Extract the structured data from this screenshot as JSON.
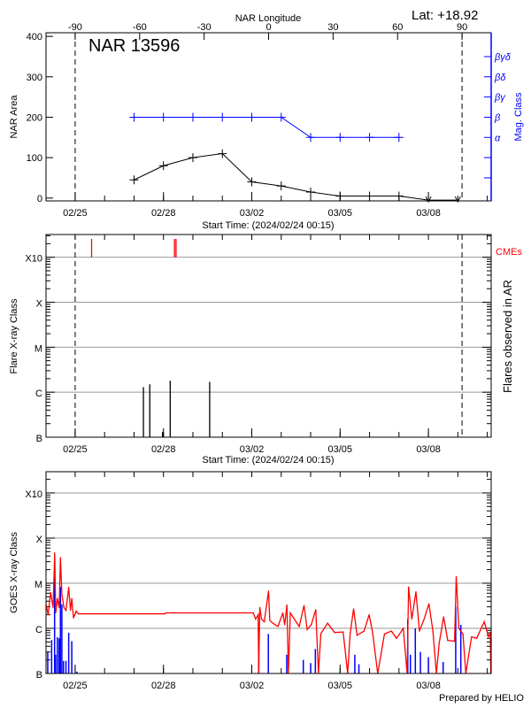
{
  "header": {
    "lat_label": "Lat: +18.92",
    "longitude_axis_label": "NAR Longitude",
    "region_title": "NAR 13596",
    "footer": "Prepared by HELIO"
  },
  "colors": {
    "area": "#000000",
    "mag_class": "#0000ff",
    "cme": "#ff0000",
    "goes_long": "#ff0000",
    "goes_short": "#0000ff",
    "grid": "#999999"
  },
  "chart_data": [
    {
      "type": "line",
      "panel": "nar",
      "xlabel": "Start Time: (2024/02/24 00:15)",
      "ylabel": "NAR Area",
      "y2label": "Mag. Class",
      "xlim": [
        "2024-02-24 00:15",
        "2024-03-10 03:10"
      ],
      "ylim": [
        -7,
        409
      ],
      "x_ticks": [
        {
          "date": "2024-02-25 00:00",
          "label": "02/25"
        },
        {
          "date": "2024-02-28 00:00",
          "label": "02/28"
        },
        {
          "date": "2024-03-02 00:00",
          "label": "03/02"
        },
        {
          "date": "2024-03-05 00:00",
          "label": "03/05"
        },
        {
          "date": "2024-03-08 00:00",
          "label": "03/08"
        }
      ],
      "y_ticks": [
        0,
        100,
        200,
        300,
        400
      ],
      "limb_dates": [
        "2024-02-25 00:00",
        "2024-03-09 03:25"
      ],
      "longitude_ticks": [
        -90,
        -60,
        -30,
        0,
        30,
        60,
        90
      ],
      "mag_class_axis": [
        {
          "level": 50,
          "label": ""
        },
        {
          "level": 100,
          "label": ""
        },
        {
          "level": 150,
          "label": "α"
        },
        {
          "level": 200,
          "label": "β"
        },
        {
          "level": 250,
          "label": "βγ"
        },
        {
          "level": 300,
          "label": "βδ"
        },
        {
          "level": 350,
          "label": "βγδ"
        }
      ],
      "series": [
        {
          "key": "area",
          "points": [
            [
              "2024-02-27 00:00",
              45
            ],
            [
              "2024-02-28 00:00",
              80
            ],
            [
              "2024-02-29 00:00",
              100
            ],
            [
              "2024-03-01 00:00",
              110
            ],
            [
              "2024-03-02 00:00",
              40
            ],
            [
              "2024-03-03 00:00",
              30
            ],
            [
              "2024-03-04 00:00",
              15
            ],
            [
              "2024-03-05 00:00",
              5
            ],
            [
              "2024-03-06 00:00",
              5
            ],
            [
              "2024-03-07 00:00",
              5
            ],
            [
              "2024-03-08 00:00",
              0
            ],
            [
              "2024-03-09 00:00",
              0
            ]
          ]
        },
        {
          "key": "mag_class",
          "points": [
            [
              "2024-02-27 00:00",
              "β"
            ],
            [
              "2024-02-28 00:00",
              "β"
            ],
            [
              "2024-02-29 00:00",
              "β"
            ],
            [
              "2024-03-01 00:00",
              "β"
            ],
            [
              "2024-03-02 00:00",
              "β"
            ],
            [
              "2024-03-03 00:00",
              "β"
            ],
            [
              "2024-03-04 00:00",
              "α"
            ],
            [
              "2024-03-05 00:00",
              "α"
            ],
            [
              "2024-03-06 00:00",
              "α"
            ],
            [
              "2024-03-07 00:00",
              "α"
            ]
          ]
        }
      ]
    },
    {
      "type": "bar",
      "panel": "flares",
      "xlabel": "Start Time: (2024/02/24 00:15)",
      "ylabel": "Flare X-ray Class",
      "y2label": "Flares observed in AR",
      "cme_label": "CMEs",
      "yscale": "log",
      "ylim": [
        1e-07,
        0.0032
      ],
      "y_ticks": [
        {
          "value": 1e-07,
          "label": "B"
        },
        {
          "value": 1e-06,
          "label": "C"
        },
        {
          "value": 1e-05,
          "label": "M"
        },
        {
          "value": 0.0001,
          "label": "X"
        },
        {
          "value": 0.001,
          "label": "X10"
        }
      ],
      "flares": [
        [
          "2024-02-27 07:40",
          1.3e-06
        ],
        [
          "2024-02-27 12:50",
          1.5e-06
        ],
        [
          "2024-02-27 23:15",
          1.3e-07
        ],
        [
          "2024-02-28 05:30",
          1.8e-06
        ],
        [
          "2024-02-29 13:40",
          1.7e-06
        ]
      ],
      "cmes": [
        "2024-02-25 13:25",
        "2024-02-28 09:00",
        "2024-02-28 10:15"
      ]
    },
    {
      "type": "line",
      "panel": "goes",
      "ylabel": "GOES X-ray Class",
      "yscale": "log",
      "ylim": [
        1e-07,
        0.00295
      ],
      "series": [
        {
          "key": "goes_long",
          "points": [
            [
              "2024-02-24 00:15",
              3.4e-06
            ],
            [
              "2024-02-24 02:00",
              2e-06
            ],
            [
              "2024-02-24 04:00",
              6.2e-06
            ],
            [
              "2024-02-24 06:00",
              2.9e-06
            ],
            [
              "2024-02-24 07:20",
              4.7e-05
            ],
            [
              "2024-02-24 08:10",
              2.2e-06
            ],
            [
              "2024-02-24 09:30",
              4.6e-06
            ],
            [
              "2024-02-24 11:00",
              2.9e-06
            ],
            [
              "2024-02-24 12:00",
              3.7e-05
            ],
            [
              "2024-02-24 13:10",
              5.7e-06
            ],
            [
              "2024-02-24 14:50",
              2.9e-06
            ],
            [
              "2024-02-24 16:30",
              2.5e-06
            ],
            [
              "2024-02-24 18:45",
              8.1e-06
            ],
            [
              "2024-02-24 20:10",
              2.5e-06
            ],
            [
              "2024-02-24 21:15",
              4.6e-06
            ],
            [
              "2024-02-24 22:40",
              1.7e-06
            ],
            [
              "2024-02-25 00:50",
              2.4e-06
            ],
            [
              "2024-02-25 02:30",
              2.1e-06
            ],
            [
              "2024-02-28 01:20",
              2.1e-06
            ],
            [
              "2024-02-28 01:50",
              2.2e-06
            ],
            [
              "2024-03-02 01:10",
              2.2e-06
            ],
            [
              "2024-03-02 03:10",
              1.6e-06
            ],
            [
              "2024-03-02 05:10",
              2e-06
            ],
            [
              "2024-03-02 05:40",
              1e-07
            ],
            [
              "2024-03-02 06:30",
              2.9e-06
            ],
            [
              "2024-03-02 08:00",
              1.6e-06
            ],
            [
              "2024-03-02 10:10",
              1.4e-06
            ],
            [
              "2024-03-02 13:40",
              6.7e-06
            ],
            [
              "2024-03-02 14:40",
              1.5e-06
            ],
            [
              "2024-03-02 17:10",
              1.3e-06
            ],
            [
              "2024-03-02 21:20",
              1.1e-06
            ],
            [
              "2024-03-03 01:20",
              2.2e-06
            ],
            [
              "2024-03-03 02:50",
              1.2e-06
            ],
            [
              "2024-03-03 04:40",
              3.3e-06
            ],
            [
              "2024-03-03 05:50",
              1e-07
            ],
            [
              "2024-03-03 07:25",
              2.2e-06
            ],
            [
              "2024-03-03 11:20",
              1.5e-06
            ],
            [
              "2024-03-03 14:40",
              1.1e-06
            ],
            [
              "2024-03-03 18:35",
              3.2e-06
            ],
            [
              "2024-03-03 21:10",
              9.4e-07
            ],
            [
              "2024-03-04 00:30",
              1.2e-06
            ],
            [
              "2024-03-04 04:10",
              2.6e-06
            ],
            [
              "2024-03-04 06:20",
              1e-07
            ],
            [
              "2024-03-04 08:20",
              7.7e-07
            ],
            [
              "2024-03-04 13:50",
              1.3e-06
            ],
            [
              "2024-03-04 19:30",
              8.1e-07
            ],
            [
              "2024-03-05 02:30",
              8.3e-07
            ],
            [
              "2024-03-05 06:10",
              1e-07
            ],
            [
              "2024-03-05 08:10",
              7.5e-07
            ],
            [
              "2024-03-05 11:00",
              2.7e-06
            ],
            [
              "2024-03-05 13:50",
              7e-07
            ],
            [
              "2024-03-05 19:30",
              8.7e-07
            ],
            [
              "2024-03-05 23:40",
              2e-06
            ],
            [
              "2024-03-06 02:30",
              8.1e-07
            ],
            [
              "2024-03-06 06:40",
              1e-07
            ],
            [
              "2024-03-06 12:10",
              7.5e-07
            ],
            [
              "2024-03-06 17:50",
              8.7e-07
            ],
            [
              "2024-03-06 22:00",
              6e-07
            ],
            [
              "2024-03-07 03:30",
              1e-06
            ],
            [
              "2024-03-07 06:40",
              1e-07
            ],
            [
              "2024-03-07 07:50",
              8.3e-06
            ],
            [
              "2024-03-07 10:30",
              1.6e-06
            ],
            [
              "2024-03-07 13:50",
              6.5e-06
            ],
            [
              "2024-03-07 16:40",
              8.7e-07
            ],
            [
              "2024-03-07 20:30",
              1.6e-06
            ],
            [
              "2024-03-08 00:25",
              3.5e-06
            ],
            [
              "2024-03-08 03:40",
              8.7e-07
            ],
            [
              "2024-03-08 06:30",
              1e-07
            ],
            [
              "2024-03-08 08:50",
              4.8e-07
            ],
            [
              "2024-03-08 12:25",
              1.8e-06
            ],
            [
              "2024-03-08 15:45",
              5.4e-07
            ],
            [
              "2024-03-08 21:20",
              5.2e-07
            ],
            [
              "2024-03-08 22:40",
              1.4e-05
            ],
            [
              "2024-03-09 00:50",
              1e-06
            ],
            [
              "2024-03-09 04:10",
              7.5e-07
            ],
            [
              "2024-03-09 06:30",
              1e-07
            ],
            [
              "2024-03-09 11:10",
              6.5e-07
            ],
            [
              "2024-03-09 15:20",
              6e-07
            ],
            [
              "2024-03-09 21:30",
              1.4e-06
            ],
            [
              "2024-03-10 01:00",
              6.5e-07
            ],
            [
              "2024-03-10 02:30",
              8.1e-07
            ],
            [
              "2024-03-10 02:50",
              1e-07
            ],
            [
              "2024-03-10 03:10",
              6e-07
            ]
          ]
        },
        {
          "key": "goes_short",
          "points": [
            [
              "2024-02-24 01:40",
              3e-07
            ],
            [
              "2024-02-24 04:50",
              5.5e-07
            ],
            [
              "2024-02-24 07:15",
              1.5e-05
            ],
            [
              "2024-02-24 08:05",
              2.6e-07
            ],
            [
              "2024-02-24 09:30",
              6.4e-07
            ],
            [
              "2024-02-24 10:55",
              6e-07
            ],
            [
              "2024-02-24 12:00",
              8.3e-06
            ],
            [
              "2024-02-24 13:10",
              3.4e-06
            ],
            [
              "2024-02-24 14:30",
              1.9e-07
            ],
            [
              "2024-02-24 16:30",
              1.9e-07
            ],
            [
              "2024-02-24 18:45",
              8e-07
            ],
            [
              "2024-02-24 21:15",
              5.2e-07
            ],
            [
              "2024-02-25 01:25",
              1.1e-07
            ],
            [
              "2024-03-02 05:40",
              2.4e-07
            ],
            [
              "2024-03-02 13:30",
              7.5e-07
            ],
            [
              "2024-03-03 04:30",
              2.6e-07
            ],
            [
              "2024-03-03 18:00",
              2e-07
            ],
            [
              "2024-03-04 00:00",
              1.7e-07
            ],
            [
              "2024-03-04 03:50",
              3.5e-07
            ],
            [
              "2024-03-05 12:00",
              2.6e-07
            ],
            [
              "2024-03-05 15:20",
              1.6e-07
            ],
            [
              "2024-03-07 07:10",
              1.6e-06
            ],
            [
              "2024-03-07 09:20",
              2.6e-07
            ],
            [
              "2024-03-07 13:20",
              1e-06
            ],
            [
              "2024-03-07 17:30",
              3e-07
            ],
            [
              "2024-03-08 00:00",
              2.3e-07
            ],
            [
              "2024-03-08 12:00",
              1.8e-07
            ],
            [
              "2024-03-08 22:15",
              3e-06
            ],
            [
              "2024-03-09 02:25",
              1.2e-06
            ]
          ]
        }
      ]
    }
  ]
}
